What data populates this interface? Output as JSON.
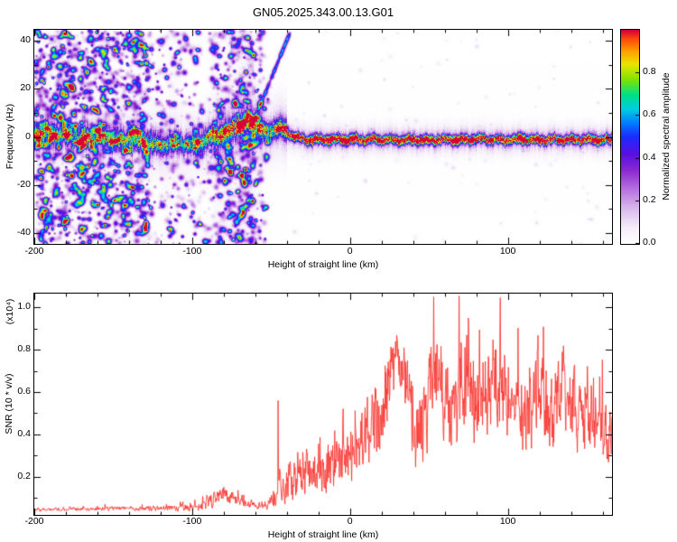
{
  "title": "GN05.2025.343.00.13.G01",
  "colors": {
    "background": "#ffffff",
    "axis": "#000000",
    "snr_line": "#f93b35",
    "colormap_low": "#ffffff",
    "colormap_high": "#d6003a"
  },
  "chart_data": [
    {
      "type": "heatmap",
      "name": "spectrogram",
      "title": "GN05.2025.343.00.13.G01",
      "xlabel": "Height of straight line (km)",
      "ylabel": "Frequency (Hz)",
      "xlim": [
        -200,
        166
      ],
      "ylim": [
        -44.5,
        44.5
      ],
      "x_major_ticks": [
        -200,
        -100,
        0,
        100
      ],
      "x_tick_labels": [
        "-200",
        "-100",
        "0",
        "100"
      ],
      "x_minor_step": 20,
      "y_major_ticks": [
        -40,
        -20,
        0,
        20,
        40
      ],
      "y_tick_labels": [
        "-40",
        "-20",
        "0",
        "20",
        "40"
      ],
      "y_minor_step": 10,
      "grid": false,
      "colorbar": {
        "label": "Normalized spectral amplitude",
        "range": [
          0,
          1
        ],
        "ticks": [
          0,
          0.2,
          0.4,
          0.6,
          0.8
        ],
        "tick_labels": [
          "0.0",
          "0.2",
          "0.4",
          "0.6",
          "0.8"
        ]
      },
      "ridge": {
        "x": [
          -200,
          -190,
          -180,
          -170,
          -160,
          -150,
          -140,
          -130,
          -120,
          -112,
          -104,
          -96,
          -88,
          -80,
          -74,
          -68,
          -64,
          -60,
          -56,
          -52,
          -48,
          -44,
          -40,
          -36,
          -30,
          -24,
          -18,
          -12,
          -6,
          0,
          10,
          20,
          30,
          40,
          50,
          60,
          70,
          80,
          90,
          100,
          110,
          120,
          130,
          140,
          150,
          160,
          166
        ],
        "freq": [
          0.5,
          1.5,
          0.5,
          -0.5,
          0.0,
          -1.0,
          -1.5,
          -2.0,
          -3.0,
          -2.5,
          -3.0,
          -2.0,
          -0.5,
          1.5,
          3.5,
          6.0,
          7.0,
          5.5,
          3.0,
          1.5,
          3.5,
          4.0,
          2.0,
          0.5,
          -0.8,
          -1.2,
          -1.0,
          -1.3,
          -0.9,
          -1.1,
          -1.0,
          -0.9,
          -1.2,
          -1.0,
          -1.3,
          -0.9,
          -1.1,
          -0.6,
          -1.0,
          -1.2,
          -0.9,
          -1.1,
          -1.0,
          -1.1,
          -0.9,
          -1.1,
          -1.0
        ],
        "amp": [
          0.55,
          0.58,
          0.55,
          0.52,
          0.56,
          0.54,
          0.57,
          0.55,
          0.58,
          0.55,
          0.52,
          0.56,
          0.62,
          0.68,
          0.74,
          0.8,
          0.78,
          0.72,
          0.66,
          0.62,
          0.68,
          0.72,
          0.78,
          0.85,
          0.92,
          0.95,
          0.96,
          0.95,
          0.97,
          0.96,
          0.97,
          0.96,
          0.97,
          0.96,
          0.97,
          0.96,
          0.97,
          0.98,
          0.96,
          0.97,
          0.96,
          0.97,
          0.96,
          0.97,
          0.96,
          0.97,
          0.96
        ]
      },
      "noise_bands": [
        {
          "x": -113,
          "s": 4,
          "w": 0.3
        },
        {
          "x": -84,
          "s": 3,
          "w": 0.45
        },
        {
          "x": -76,
          "s": 2.5,
          "w": 0.55
        },
        {
          "x": -69,
          "s": 2,
          "w": 0.7
        },
        {
          "x": -63,
          "s": 2.5,
          "w": 0.75
        },
        {
          "x": -57,
          "s": 1.5,
          "w": 0.35
        }
      ],
      "diagonal_streak": {
        "x0": -63,
        "f0": 4,
        "x1": -38,
        "f1": 44
      },
      "noise_description": "dense full-band speckle noise below -120 km, banded vertical noise -120..-55 km, clean narrow ridge near 0 Hz above -40 km"
    },
    {
      "type": "line",
      "name": "snr",
      "xlabel": "Height of straight line (km)",
      "ylabel": "SNR (10 * v/v)",
      "scale_note": "(x10⁴)",
      "line_color": "#f93b35",
      "xlim": [
        -200,
        166
      ],
      "ylim": [
        0.02,
        1.065
      ],
      "x_major_ticks": [
        -200,
        -100,
        0,
        100
      ],
      "x_tick_labels": [
        "-200",
        "-100",
        "0",
        "100"
      ],
      "x_minor_step": 20,
      "y_major_ticks": [
        0.2,
        0.4,
        0.6,
        0.8,
        1.0
      ],
      "y_tick_labels": [
        "0.2",
        "0.4",
        "0.6",
        "0.8",
        "1.0"
      ],
      "y_minor_step": 0.1,
      "envelope": {
        "x": [
          -200,
          -170,
          -140,
          -120,
          -105,
          -95,
          -88,
          -82,
          -76,
          -70,
          -64,
          -58,
          -52,
          -48,
          -45,
          -42,
          -38,
          -34,
          -30,
          -26,
          -22,
          -18,
          -14,
          -10,
          -6,
          -2,
          2,
          6,
          10,
          14,
          18,
          22,
          26,
          30,
          34,
          38,
          42,
          46,
          50,
          54,
          58,
          62,
          66,
          70,
          74,
          78,
          82,
          86,
          90,
          95,
          100,
          105,
          110,
          115,
          120,
          125,
          130,
          135,
          140,
          145,
          150,
          155,
          160,
          166
        ],
        "mean": [
          0.045,
          0.048,
          0.05,
          0.052,
          0.055,
          0.065,
          0.09,
          0.115,
          0.105,
          0.09,
          0.075,
          0.065,
          0.07,
          0.09,
          0.13,
          0.16,
          0.18,
          0.2,
          0.19,
          0.22,
          0.21,
          0.25,
          0.24,
          0.27,
          0.29,
          0.3,
          0.32,
          0.34,
          0.38,
          0.42,
          0.5,
          0.58,
          0.68,
          0.74,
          0.7,
          0.52,
          0.38,
          0.45,
          0.58,
          0.72,
          0.6,
          0.5,
          0.55,
          0.6,
          0.68,
          0.6,
          0.55,
          0.58,
          0.62,
          0.66,
          0.56,
          0.6,
          0.52,
          0.56,
          0.64,
          0.52,
          0.55,
          0.6,
          0.56,
          0.5,
          0.55,
          0.48,
          0.42,
          0.38
        ],
        "amp": [
          0.012,
          0.012,
          0.015,
          0.018,
          0.025,
          0.04,
          0.05,
          0.055,
          0.05,
          0.04,
          0.025,
          0.02,
          0.03,
          0.08,
          0.1,
          0.12,
          0.13,
          0.14,
          0.13,
          0.15,
          0.14,
          0.16,
          0.16,
          0.17,
          0.18,
          0.18,
          0.19,
          0.2,
          0.22,
          0.24,
          0.25,
          0.25,
          0.22,
          0.18,
          0.2,
          0.24,
          0.22,
          0.26,
          0.3,
          0.28,
          0.3,
          0.3,
          0.32,
          0.32,
          0.3,
          0.3,
          0.3,
          0.3,
          0.3,
          0.3,
          0.3,
          0.3,
          0.3,
          0.3,
          0.3,
          0.3,
          0.3,
          0.3,
          0.3,
          0.28,
          0.28,
          0.26,
          0.24,
          0.2
        ]
      },
      "peaks": [
        {
          "x": -45.5,
          "y": 0.56
        },
        {
          "x": 30,
          "y": 0.84
        },
        {
          "x": 53,
          "y": 1.05
        },
        {
          "x": 75,
          "y": 0.95
        },
        {
          "x": 95,
          "y": 0.9
        }
      ]
    }
  ]
}
